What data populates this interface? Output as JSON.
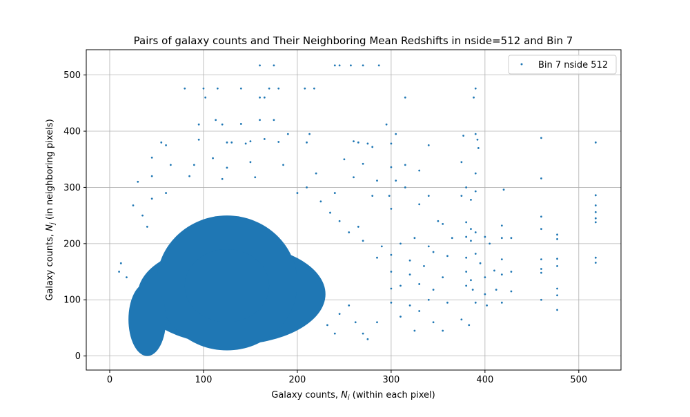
{
  "chart_data": {
    "type": "scatter",
    "title": "Pairs of galaxy counts and Their Neighboring Mean Redshifts in nside=512 and Bin 7",
    "xlabel_main": "Galaxy counts, ",
    "xlabel_var": "N",
    "xlabel_sub": "i",
    "xlabel_tail": " (within each pixel)",
    "ylabel_main": "Galaxy counts, ",
    "ylabel_var": "N",
    "ylabel_sub": "j",
    "ylabel_tail": " (in neighboring pixels)",
    "xlim": [
      -25,
      545
    ],
    "ylim": [
      -25,
      545
    ],
    "xticks": [
      0,
      100,
      200,
      300,
      400,
      500
    ],
    "yticks": [
      0,
      100,
      200,
      300,
      400,
      500
    ],
    "xtick_labels": [
      "0",
      "100",
      "200",
      "300",
      "400",
      "500"
    ],
    "ytick_labels": [
      "0",
      "100",
      "200",
      "300",
      "400",
      "500"
    ],
    "grid": true,
    "legend_position": "top-right",
    "series": [
      {
        "name": "Bin 7 nside 512",
        "color": "#1f77b4",
        "marker": "point",
        "dense_core": [
          {
            "x": [
              30,
              230
            ],
            "y": [
              20,
              200
            ]
          },
          {
            "x": [
              50,
              200
            ],
            "y": [
              10,
              250
            ]
          },
          {
            "x": [
              80,
              170
            ],
            "y": [
              60,
              190
            ]
          },
          {
            "x": [
              20,
              60
            ],
            "y": [
              0,
              130
            ]
          }
        ],
        "points": [
          [
            160,
            517
          ],
          [
            175,
            517
          ],
          [
            240,
            517
          ],
          [
            245,
            517
          ],
          [
            257,
            517
          ],
          [
            270,
            517
          ],
          [
            287,
            517
          ],
          [
            80,
            476
          ],
          [
            100,
            476
          ],
          [
            115,
            476
          ],
          [
            140,
            476
          ],
          [
            170,
            476
          ],
          [
            180,
            476
          ],
          [
            208,
            476
          ],
          [
            218,
            476
          ],
          [
            390,
            476
          ],
          [
            102,
            460
          ],
          [
            160,
            460
          ],
          [
            165,
            460
          ],
          [
            315,
            460
          ],
          [
            388,
            460
          ],
          [
            95,
            412
          ],
          [
            113,
            420
          ],
          [
            120,
            412
          ],
          [
            140,
            413
          ],
          [
            160,
            420
          ],
          [
            175,
            420
          ],
          [
            190,
            395
          ],
          [
            213,
            395
          ],
          [
            295,
            412
          ],
          [
            305,
            395
          ],
          [
            377,
            392
          ],
          [
            390,
            395
          ],
          [
            392,
            385
          ],
          [
            460,
            388
          ],
          [
            518,
            380
          ],
          [
            55,
            380
          ],
          [
            60,
            375
          ],
          [
            95,
            385
          ],
          [
            125,
            380
          ],
          [
            130,
            380
          ],
          [
            145,
            378
          ],
          [
            150,
            382
          ],
          [
            165,
            386
          ],
          [
            180,
            381
          ],
          [
            210,
            380
          ],
          [
            260,
            382
          ],
          [
            265,
            380
          ],
          [
            275,
            378
          ],
          [
            280,
            372
          ],
          [
            300,
            378
          ],
          [
            340,
            375
          ],
          [
            393,
            370
          ],
          [
            45,
            353
          ],
          [
            65,
            340
          ],
          [
            90,
            340
          ],
          [
            110,
            352
          ],
          [
            125,
            335
          ],
          [
            150,
            345
          ],
          [
            185,
            340
          ],
          [
            250,
            350
          ],
          [
            270,
            342
          ],
          [
            300,
            336
          ],
          [
            315,
            340
          ],
          [
            330,
            330
          ],
          [
            375,
            345
          ],
          [
            390,
            325
          ],
          [
            30,
            310
          ],
          [
            45,
            320
          ],
          [
            85,
            320
          ],
          [
            120,
            315
          ],
          [
            155,
            318
          ],
          [
            220,
            325
          ],
          [
            260,
            318
          ],
          [
            285,
            312
          ],
          [
            305,
            312
          ],
          [
            315,
            300
          ],
          [
            380,
            300
          ],
          [
            390,
            293
          ],
          [
            420,
            296
          ],
          [
            460,
            316
          ],
          [
            518,
            286
          ],
          [
            25,
            268
          ],
          [
            45,
            280
          ],
          [
            60,
            290
          ],
          [
            200,
            290
          ],
          [
            240,
            290
          ],
          [
            280,
            285
          ],
          [
            298,
            285
          ],
          [
            340,
            285
          ],
          [
            375,
            285
          ],
          [
            385,
            278
          ],
          [
            300,
            262
          ],
          [
            330,
            270
          ],
          [
            350,
            240
          ],
          [
            355,
            235
          ],
          [
            380,
            238
          ],
          [
            385,
            226
          ],
          [
            390,
            220
          ],
          [
            418,
            232
          ],
          [
            460,
            248
          ],
          [
            460,
            226
          ],
          [
            518,
            268
          ],
          [
            518,
            256
          ],
          [
            518,
            245
          ],
          [
            310,
            200
          ],
          [
            325,
            210
          ],
          [
            340,
            195
          ],
          [
            365,
            210
          ],
          [
            380,
            212
          ],
          [
            385,
            205
          ],
          [
            400,
            212
          ],
          [
            405,
            200
          ],
          [
            418,
            210
          ],
          [
            428,
            210
          ],
          [
            477,
            216
          ],
          [
            477,
            208
          ],
          [
            518,
            238
          ],
          [
            300,
            180
          ],
          [
            320,
            170
          ],
          [
            345,
            185
          ],
          [
            360,
            178
          ],
          [
            380,
            175
          ],
          [
            390,
            182
          ],
          [
            395,
            165
          ],
          [
            418,
            172
          ],
          [
            460,
            172
          ],
          [
            477,
            173
          ],
          [
            518,
            175
          ],
          [
            518,
            166
          ],
          [
            300,
            150
          ],
          [
            320,
            145
          ],
          [
            335,
            160
          ],
          [
            355,
            140
          ],
          [
            380,
            150
          ],
          [
            385,
            135
          ],
          [
            400,
            140
          ],
          [
            410,
            152
          ],
          [
            418,
            145
          ],
          [
            428,
            150
          ],
          [
            460,
            155
          ],
          [
            460,
            148
          ],
          [
            477,
            160
          ],
          [
            300,
            120
          ],
          [
            310,
            125
          ],
          [
            330,
            128
          ],
          [
            345,
            118
          ],
          [
            380,
            125
          ],
          [
            387,
            118
          ],
          [
            400,
            110
          ],
          [
            412,
            118
          ],
          [
            428,
            115
          ],
          [
            477,
            120
          ],
          [
            477,
            108
          ],
          [
            300,
            95
          ],
          [
            320,
            90
          ],
          [
            340,
            100
          ],
          [
            360,
            95
          ],
          [
            375,
            65
          ],
          [
            383,
            55
          ],
          [
            390,
            95
          ],
          [
            402,
            90
          ],
          [
            418,
            95
          ],
          [
            460,
            100
          ],
          [
            477,
            82
          ],
          [
            310,
            70
          ],
          [
            330,
            80
          ],
          [
            345,
            60
          ],
          [
            325,
            45
          ],
          [
            355,
            45
          ],
          [
            270,
            40
          ],
          [
            285,
            60
          ],
          [
            275,
            30
          ],
          [
            245,
            240
          ],
          [
            255,
            220
          ],
          [
            265,
            230
          ],
          [
            270,
            205
          ],
          [
            285,
            175
          ],
          [
            290,
            195
          ],
          [
            235,
            255
          ],
          [
            225,
            275
          ],
          [
            210,
            300
          ],
          [
            245,
            75
          ],
          [
            255,
            90
          ],
          [
            262,
            60
          ],
          [
            232,
            55
          ],
          [
            240,
            40
          ],
          [
            10,
            150
          ],
          [
            18,
            140
          ],
          [
            12,
            165
          ],
          [
            35,
            250
          ],
          [
            40,
            230
          ]
        ]
      }
    ]
  }
}
